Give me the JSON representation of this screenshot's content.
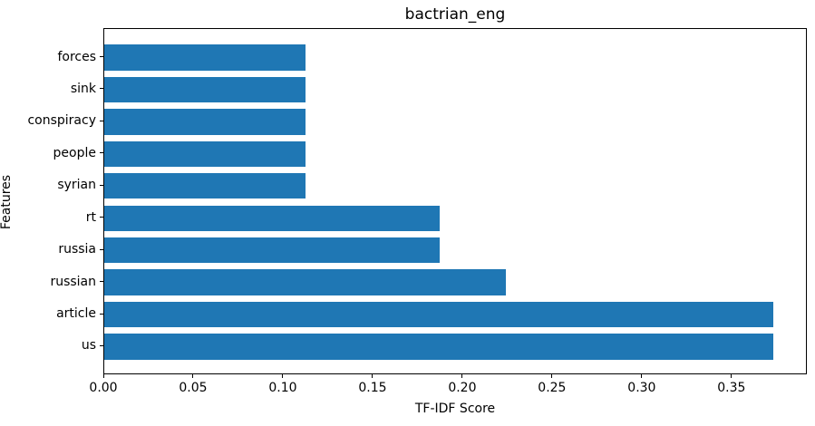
{
  "chart_data": {
    "type": "bar",
    "orientation": "horizontal",
    "title": "bactrian_eng",
    "xlabel": "TF-IDF Score",
    "ylabel": "Features",
    "categories": [
      "forces",
      "sink",
      "conspiracy",
      "people",
      "syrian",
      "rt",
      "russia",
      "russian",
      "article",
      "us"
    ],
    "values": [
      0.112,
      0.112,
      0.112,
      0.112,
      0.112,
      0.187,
      0.187,
      0.224,
      0.373,
      0.373
    ],
    "xlim": [
      0,
      0.392
    ],
    "xticks": [
      0.0,
      0.05,
      0.1,
      0.15,
      0.2,
      0.25,
      0.3,
      0.35
    ],
    "xtick_labels": [
      "0.00",
      "0.05",
      "0.10",
      "0.15",
      "0.20",
      "0.25",
      "0.30",
      "0.35"
    ],
    "bar_color": "#1f77b4",
    "spine_color": "#000000",
    "grid": false,
    "legend": null
  }
}
